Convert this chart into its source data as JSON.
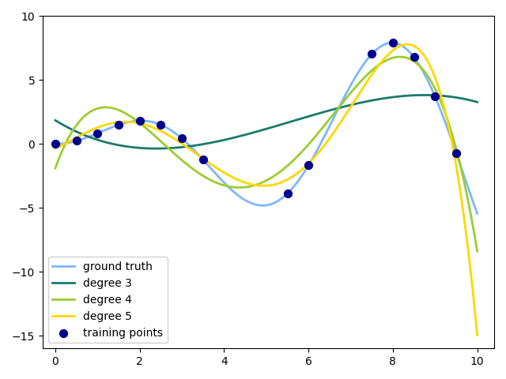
{
  "x_min": 0,
  "x_max": 10,
  "n_points": 500,
  "ground_truth_color": "#7EB6FF",
  "degree3_color": "#1A7A6A",
  "degree4_color": "#9ACD32",
  "degree5_color": "#FFD700",
  "training_color": "#00008B",
  "training_x": [
    0.0,
    0.5,
    1.0,
    1.5,
    2.0,
    2.5,
    3.0,
    3.5,
    5.5,
    6.0,
    7.5,
    8.0,
    8.5,
    9.0,
    9.5
  ],
  "legend_labels": [
    "ground truth",
    "degree 3",
    "degree 4",
    "degree 5",
    "training points"
  ],
  "ylim": [
    -16,
    10
  ],
  "xlim": [
    -0.3,
    10.4
  ],
  "linewidth": 2.0
}
